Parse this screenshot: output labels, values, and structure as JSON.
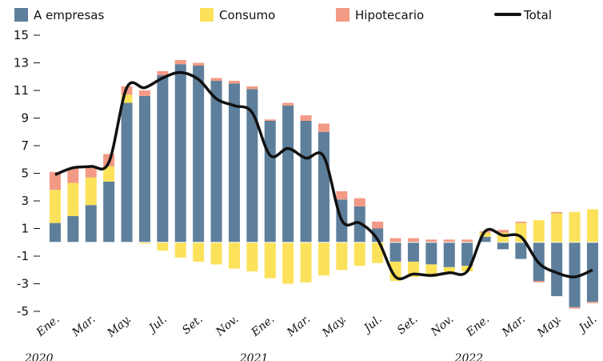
{
  "chart_data": {
    "type": "bar",
    "stacked": true,
    "categories": [
      "Ene.",
      null,
      "Mar.",
      null,
      "May.",
      null,
      "Jul.",
      null,
      "Set.",
      null,
      "Nov.",
      null,
      "Ene.",
      null,
      "Mar.",
      null,
      "May.",
      null,
      "Jul.",
      null,
      "Set.",
      null,
      "Nov.",
      null,
      "Ene.",
      null,
      "Mar.",
      null,
      "May.",
      null,
      "Jul."
    ],
    "year_labels": [
      {
        "index": 0,
        "label": "2020"
      },
      {
        "index": 12,
        "label": "2021"
      },
      {
        "index": 24,
        "label": "2022"
      }
    ],
    "series": [
      {
        "name": "A empresas",
        "color": "#5d7f9c",
        "values": [
          1.4,
          1.9,
          2.7,
          4.4,
          10.1,
          10.6,
          12.1,
          12.9,
          12.8,
          11.7,
          11.5,
          11.1,
          8.8,
          9.9,
          8.8,
          8.0,
          3.1,
          2.6,
          1.0,
          -1.4,
          -1.4,
          -1.6,
          -1.8,
          -1.7,
          0.4,
          -0.5,
          -1.2,
          -2.8,
          -3.9,
          -4.7,
          -4.3
        ]
      },
      {
        "name": "Consumo",
        "color": "#fce25b",
        "values": [
          2.4,
          2.4,
          2.0,
          1.1,
          0.6,
          -0.1,
          -0.6,
          -1.1,
          -1.4,
          -1.6,
          -1.9,
          -2.1,
          -2.6,
          -3.0,
          -2.9,
          -2.4,
          -2.0,
          -1.7,
          -1.5,
          -1.4,
          -1.1,
          -0.9,
          -0.5,
          -0.4,
          0.3,
          0.7,
          1.4,
          1.6,
          2.1,
          2.2,
          2.4
        ]
      },
      {
        "name": "Hipotecario",
        "color": "#f29a85",
        "values": [
          1.3,
          1.1,
          0.8,
          0.9,
          0.6,
          0.4,
          0.3,
          0.3,
          0.2,
          0.2,
          0.2,
          0.2,
          0.1,
          0.2,
          0.4,
          0.6,
          0.6,
          0.6,
          0.5,
          0.3,
          0.3,
          0.2,
          0.2,
          0.2,
          0.1,
          0.2,
          0.1,
          -0.1,
          0.1,
          -0.1,
          -0.1
        ]
      },
      {
        "name": "Total",
        "type": "line",
        "color": "#111111",
        "values": [
          4.9,
          5.4,
          5.5,
          5.8,
          11.2,
          11.2,
          11.9,
          12.3,
          11.8,
          10.4,
          9.9,
          9.4,
          6.3,
          6.8,
          6.1,
          6.2,
          1.6,
          1.4,
          0.2,
          -2.5,
          -2.3,
          -2.4,
          -2.2,
          -2.1,
          0.8,
          0.5,
          0.4,
          -1.5,
          -2.2,
          -2.5,
          -2.0
        ]
      }
    ],
    "ylim": [
      -5,
      15
    ],
    "yticks": [
      -5,
      -3,
      -1,
      1,
      3,
      5,
      7,
      9,
      11,
      13,
      15
    ]
  }
}
